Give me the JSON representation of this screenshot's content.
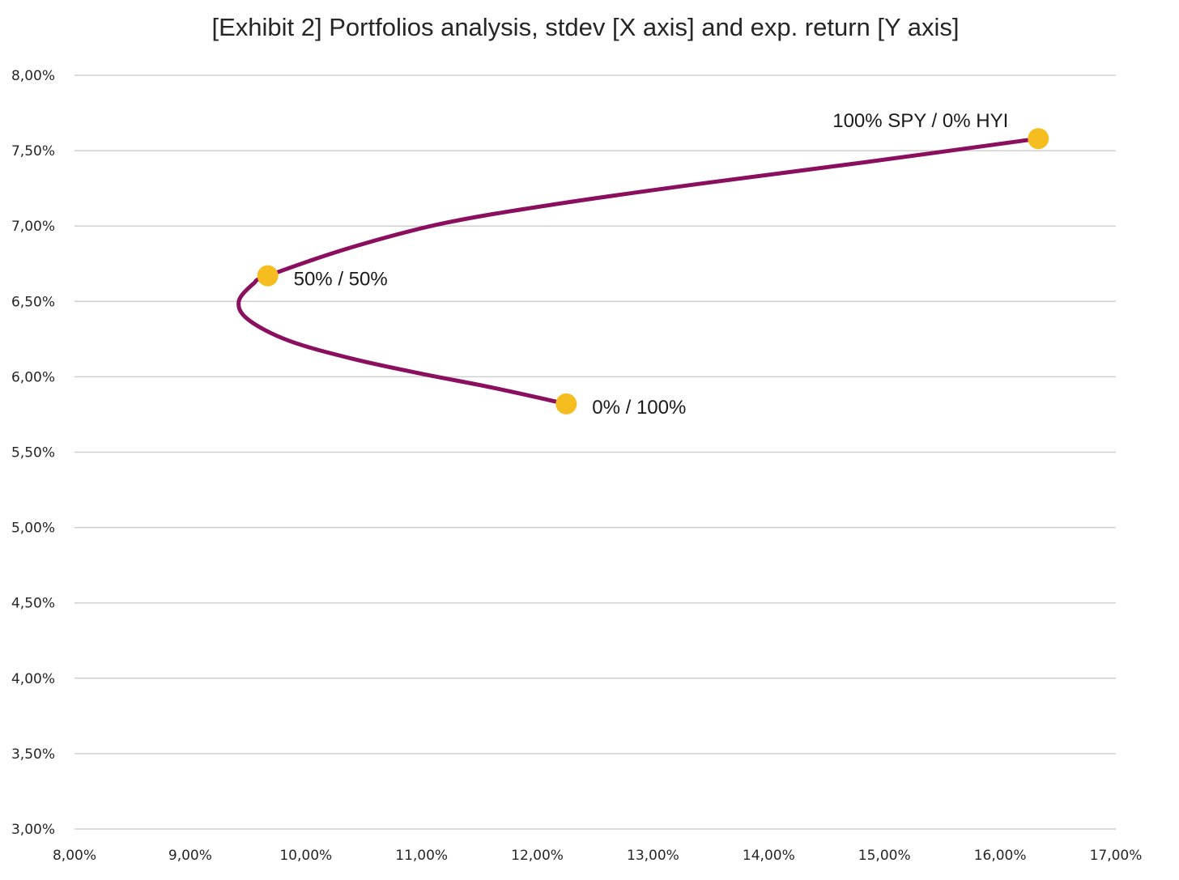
{
  "chart_data": {
    "type": "scatter",
    "title": "[Exhibit 2] Portfolios analysis, stdev [X axis] and exp. return [Y axis]",
    "xlabel": "",
    "ylabel": "",
    "xlim": [
      8,
      17
    ],
    "ylim": [
      3,
      8
    ],
    "x_ticks": [
      "8,00%",
      "9,00%",
      "10,00%",
      "11,00%",
      "12,00%",
      "13,00%",
      "14,00%",
      "15,00%",
      "16,00%",
      "17,00%"
    ],
    "y_ticks": [
      "3,00%",
      "3,50%",
      "4,00%",
      "4,50%",
      "5,00%",
      "5,50%",
      "6,00%",
      "6,50%",
      "7,00%",
      "7,50%",
      "8,00%"
    ],
    "grid": "horizontal",
    "series": [
      {
        "kind": "frontier-line",
        "points": [
          {
            "x": 12.25,
            "y": 5.82
          },
          {
            "x": 11.6,
            "y": 5.93
          },
          {
            "x": 11.0,
            "y": 6.02
          },
          {
            "x": 10.4,
            "y": 6.12
          },
          {
            "x": 9.85,
            "y": 6.24
          },
          {
            "x": 9.5,
            "y": 6.38
          },
          {
            "x": 9.42,
            "y": 6.5
          },
          {
            "x": 9.55,
            "y": 6.62
          },
          {
            "x": 9.67,
            "y": 6.67
          },
          {
            "x": 10.4,
            "y": 6.86
          },
          {
            "x": 11.2,
            "y": 7.02
          },
          {
            "x": 12.2,
            "y": 7.15
          },
          {
            "x": 13.4,
            "y": 7.28
          },
          {
            "x": 14.8,
            "y": 7.42
          },
          {
            "x": 16.33,
            "y": 7.58
          }
        ]
      },
      {
        "kind": "highlighted-portfolios",
        "points": [
          {
            "x": 16.33,
            "y": 7.58,
            "label": "100% SPY / 0% HYI"
          },
          {
            "x": 9.67,
            "y": 6.67,
            "label": "50% / 50%"
          },
          {
            "x": 12.25,
            "y": 5.82,
            "label": "0% / 100%"
          }
        ]
      }
    ]
  },
  "colors": {
    "line": "#8a0f5e",
    "marker": "#f5bd1f",
    "grid": "#d0d0d0",
    "text": "#262626"
  }
}
